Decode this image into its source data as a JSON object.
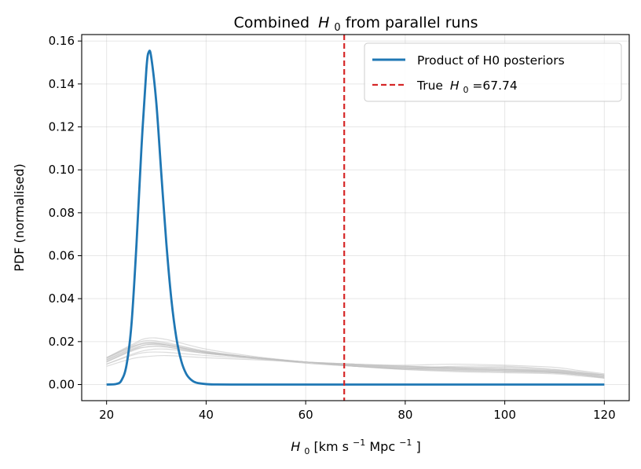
{
  "chart_data": {
    "type": "line",
    "title": "Combined",
    "title_symbol": "H",
    "title_symbol_sub": "0",
    "title_suffix": " from parallel runs",
    "xlabel_symbol": "H",
    "xlabel_symbol_sub": "0",
    "xlabel_units_a": " [km s",
    "xlabel_units_a_sup": "−1",
    "xlabel_units_b": " Mpc",
    "xlabel_units_b_sup": "−1",
    "xlabel_units_c": "]",
    "ylabel": "PDF (normalised)",
    "xlim": [
      15,
      125
    ],
    "ylim": [
      -0.0075,
      0.163
    ],
    "x_ticks": [
      20,
      40,
      60,
      80,
      100,
      120
    ],
    "x_tick_labels": [
      "20",
      "40",
      "60",
      "80",
      "100",
      "120"
    ],
    "y_ticks": [
      0.0,
      0.02,
      0.04,
      0.06,
      0.08,
      0.1,
      0.12,
      0.14,
      0.16
    ],
    "y_tick_labels": [
      "0.00",
      "0.02",
      "0.04",
      "0.06",
      "0.08",
      "0.10",
      "0.12",
      "0.14",
      "0.16"
    ],
    "grid": true,
    "legend_position": "top-right",
    "product_series": {
      "name": "Product of H0 posteriors",
      "color": "#1f77b4",
      "x": [
        20,
        22,
        23,
        24,
        25,
        26,
        27,
        28,
        28.5,
        29,
        30,
        31,
        32,
        33,
        34,
        35,
        36,
        37,
        38,
        40,
        42,
        45,
        50,
        60,
        80,
        100,
        120
      ],
      "y": [
        0.0,
        0.0003,
        0.002,
        0.009,
        0.028,
        0.065,
        0.11,
        0.147,
        0.155,
        0.152,
        0.131,
        0.098,
        0.066,
        0.04,
        0.022,
        0.011,
        0.005,
        0.0022,
        0.0009,
        0.0002,
        4e-05,
        0.0,
        0.0,
        0.0,
        0.0,
        0.0,
        0.0
      ]
    },
    "true_line": {
      "label_prefix": "True ",
      "symbol": "H",
      "symbol_sub": "0",
      "label_suffix": "=67.74",
      "value": 67.74,
      "color": "#d62728"
    },
    "runs": {
      "color": "#bfbfbf",
      "x": [
        20,
        25,
        28,
        32,
        40,
        50,
        60,
        70,
        80,
        90,
        100,
        110,
        115,
        120
      ],
      "series": [
        [
          0.0125,
          0.018,
          0.0205,
          0.0195,
          0.0155,
          0.0125,
          0.0105,
          0.009,
          0.0075,
          0.0065,
          0.006,
          0.0055,
          0.0045,
          0.003
        ],
        [
          0.0115,
          0.017,
          0.0195,
          0.019,
          0.0155,
          0.0125,
          0.01,
          0.0085,
          0.0075,
          0.007,
          0.0065,
          0.0055,
          0.0045,
          0.0035
        ],
        [
          0.0105,
          0.016,
          0.0185,
          0.0185,
          0.015,
          0.0125,
          0.0105,
          0.009,
          0.008,
          0.0075,
          0.007,
          0.006,
          0.005,
          0.0035
        ],
        [
          0.012,
          0.0175,
          0.019,
          0.0185,
          0.015,
          0.012,
          0.01,
          0.0085,
          0.007,
          0.0065,
          0.006,
          0.0055,
          0.0045,
          0.003
        ],
        [
          0.0095,
          0.014,
          0.016,
          0.0165,
          0.0145,
          0.0125,
          0.0105,
          0.0095,
          0.0085,
          0.0075,
          0.007,
          0.006,
          0.005,
          0.004
        ],
        [
          0.011,
          0.016,
          0.0175,
          0.0175,
          0.0145,
          0.0125,
          0.0105,
          0.0085,
          0.0075,
          0.0085,
          0.0085,
          0.007,
          0.0055,
          0.0045
        ],
        [
          0.0085,
          0.012,
          0.013,
          0.0135,
          0.0125,
          0.0115,
          0.0105,
          0.0095,
          0.009,
          0.0095,
          0.009,
          0.008,
          0.0065,
          0.005
        ],
        [
          0.0125,
          0.0185,
          0.0215,
          0.021,
          0.0165,
          0.013,
          0.0105,
          0.0085,
          0.007,
          0.006,
          0.0055,
          0.005,
          0.004,
          0.003
        ],
        [
          0.0105,
          0.0155,
          0.0175,
          0.0175,
          0.0145,
          0.0125,
          0.0105,
          0.009,
          0.0085,
          0.008,
          0.0075,
          0.0065,
          0.0055,
          0.004
        ],
        [
          0.0115,
          0.0165,
          0.0185,
          0.018,
          0.015,
          0.0125,
          0.0105,
          0.009,
          0.008,
          0.0075,
          0.007,
          0.0065,
          0.0055,
          0.0045
        ],
        [
          0.0095,
          0.0135,
          0.015,
          0.015,
          0.0135,
          0.012,
          0.0105,
          0.0095,
          0.0085,
          0.008,
          0.008,
          0.007,
          0.006,
          0.0045
        ],
        [
          0.0125,
          0.0175,
          0.0195,
          0.0185,
          0.015,
          0.0125,
          0.0105,
          0.0085,
          0.0075,
          0.007,
          0.0065,
          0.006,
          0.005,
          0.0035
        ]
      ]
    }
  }
}
